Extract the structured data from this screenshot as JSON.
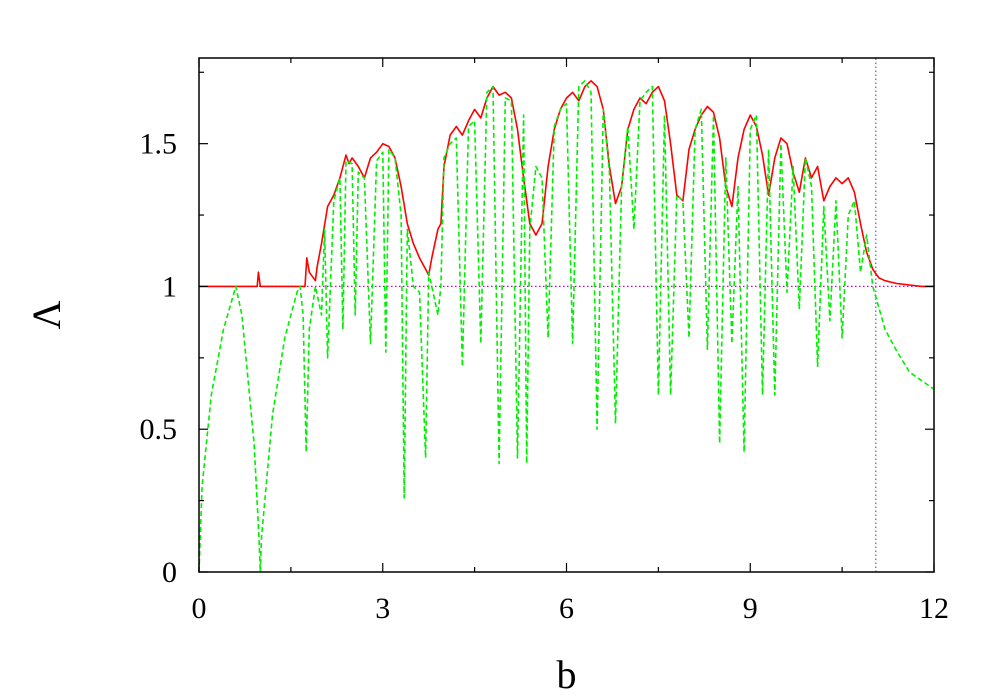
{
  "chart_data": {
    "type": "line",
    "xlabel": "b",
    "ylabel": "Λ",
    "xlim": [
      0,
      12
    ],
    "ylim": [
      0,
      1.8
    ],
    "x_ticks": [
      0,
      3,
      6,
      9,
      12
    ],
    "x_tick_labels": [
      "0",
      "3",
      "6",
      "9",
      "12"
    ],
    "y_ticks": [
      0,
      0.5,
      1,
      1.5
    ],
    "y_tick_labels": [
      "0",
      "0.5",
      "1",
      "1.5"
    ],
    "grid": false,
    "legend": "none",
    "colors": {
      "red": "#ff0000",
      "green": "#00ee00",
      "magenta": "#cc00cc",
      "blue": "#4a66d6"
    },
    "series": [
      {
        "color": "#ff0000",
        "style": "solid",
        "x": [
          0,
          0.95,
          0.97,
          1.0,
          1.05,
          1.7,
          1.73,
          1.76,
          1.8,
          1.9,
          1.93,
          2.0,
          2.1,
          2.2,
          2.3,
          2.4,
          2.45,
          2.5,
          2.6,
          2.7,
          2.8,
          2.9,
          3.0,
          3.1,
          3.2,
          3.3,
          3.4,
          3.5,
          3.6,
          3.7,
          3.75,
          3.8,
          3.9,
          3.95,
          4.0,
          4.1,
          4.2,
          4.3,
          4.4,
          4.5,
          4.6,
          4.7,
          4.8,
          4.9,
          5.0,
          5.1,
          5.2,
          5.3,
          5.4,
          5.5,
          5.6,
          5.7,
          5.8,
          5.9,
          6.0,
          6.1,
          6.2,
          6.3,
          6.4,
          6.5,
          6.6,
          6.7,
          6.8,
          6.9,
          7.0,
          7.1,
          7.2,
          7.3,
          7.4,
          7.5,
          7.6,
          7.7,
          7.8,
          7.9,
          8.0,
          8.1,
          8.2,
          8.3,
          8.4,
          8.5,
          8.6,
          8.7,
          8.8,
          8.9,
          9.0,
          9.1,
          9.2,
          9.3,
          9.4,
          9.5,
          9.6,
          9.7,
          9.8,
          9.9,
          10.0,
          10.1,
          10.2,
          10.3,
          10.4,
          10.5,
          10.6,
          10.7,
          10.8,
          10.9,
          11.0,
          11.1,
          11.2,
          11.4,
          11.6,
          11.8,
          12.0
        ],
        "y": [
          1.0,
          1.0,
          1.05,
          1.0,
          1.0,
          1.0,
          1.0,
          1.1,
          1.05,
          1.02,
          1.07,
          1.15,
          1.28,
          1.32,
          1.38,
          1.46,
          1.43,
          1.45,
          1.42,
          1.38,
          1.45,
          1.47,
          1.5,
          1.49,
          1.45,
          1.35,
          1.22,
          1.15,
          1.1,
          1.06,
          1.04,
          1.1,
          1.2,
          1.22,
          1.42,
          1.53,
          1.56,
          1.53,
          1.58,
          1.62,
          1.59,
          1.66,
          1.7,
          1.67,
          1.68,
          1.66,
          1.55,
          1.38,
          1.22,
          1.18,
          1.22,
          1.42,
          1.55,
          1.62,
          1.66,
          1.68,
          1.65,
          1.7,
          1.72,
          1.7,
          1.62,
          1.42,
          1.29,
          1.35,
          1.55,
          1.62,
          1.66,
          1.64,
          1.68,
          1.7,
          1.65,
          1.5,
          1.32,
          1.3,
          1.48,
          1.55,
          1.6,
          1.63,
          1.61,
          1.52,
          1.35,
          1.28,
          1.45,
          1.55,
          1.6,
          1.56,
          1.46,
          1.32,
          1.45,
          1.52,
          1.5,
          1.4,
          1.33,
          1.45,
          1.38,
          1.42,
          1.3,
          1.35,
          1.38,
          1.36,
          1.38,
          1.33,
          1.22,
          1.12,
          1.06,
          1.03,
          1.02,
          1.01,
          1.005,
          1.0,
          1.0
        ]
      },
      {
        "color": "#00ee00",
        "style": "dashed",
        "x": [
          0,
          0.05,
          0.2,
          0.4,
          0.6,
          0.7,
          0.9,
          0.98,
          1.0,
          1.02,
          1.2,
          1.4,
          1.6,
          1.65,
          1.7,
          1.75,
          1.8,
          1.9,
          2.0,
          2.05,
          2.1,
          2.2,
          2.3,
          2.35,
          2.4,
          2.5,
          2.55,
          2.6,
          2.7,
          2.8,
          2.9,
          3.0,
          3.05,
          3.1,
          3.2,
          3.3,
          3.35,
          3.4,
          3.5,
          3.6,
          3.7,
          3.75,
          3.8,
          3.9,
          3.95,
          4.0,
          4.1,
          4.2,
          4.3,
          4.4,
          4.5,
          4.6,
          4.7,
          4.8,
          4.9,
          5.0,
          5.1,
          5.2,
          5.3,
          5.35,
          5.4,
          5.5,
          5.6,
          5.7,
          5.8,
          5.9,
          6.0,
          6.1,
          6.2,
          6.3,
          6.4,
          6.5,
          6.6,
          6.7,
          6.8,
          6.9,
          7.0,
          7.1,
          7.2,
          7.3,
          7.4,
          7.5,
          7.6,
          7.7,
          7.8,
          7.9,
          8.0,
          8.1,
          8.2,
          8.3,
          8.4,
          8.5,
          8.6,
          8.7,
          8.8,
          8.9,
          9.0,
          9.1,
          9.2,
          9.3,
          9.4,
          9.5,
          9.6,
          9.7,
          9.8,
          9.9,
          10.0,
          10.1,
          10.2,
          10.3,
          10.4,
          10.5,
          10.6,
          10.7,
          10.8,
          10.9,
          11.0,
          11.2,
          11.4,
          11.6,
          11.8,
          12.0
        ],
        "y": [
          0.0,
          0.3,
          0.62,
          0.85,
          1.0,
          0.9,
          0.45,
          0.12,
          0.0,
          0.12,
          0.55,
          0.82,
          0.98,
          1.0,
          0.9,
          0.42,
          0.85,
          1.0,
          0.9,
          1.2,
          0.75,
          1.3,
          1.38,
          0.85,
          1.44,
          1.43,
          0.9,
          1.4,
          1.38,
          0.8,
          1.44,
          1.47,
          0.77,
          1.48,
          1.45,
          1.25,
          0.26,
          1.2,
          1.0,
          0.98,
          0.4,
          1.05,
          1.0,
          0.9,
          1.0,
          1.45,
          1.5,
          1.52,
          0.72,
          1.56,
          1.58,
          0.8,
          1.68,
          1.7,
          0.38,
          1.66,
          1.65,
          0.4,
          1.6,
          0.38,
          1.2,
          1.42,
          1.38,
          0.82,
          1.56,
          1.62,
          1.64,
          0.8,
          1.7,
          1.72,
          1.68,
          0.5,
          1.62,
          1.4,
          0.52,
          1.35,
          1.56,
          1.2,
          1.65,
          1.68,
          1.7,
          0.62,
          1.6,
          0.62,
          1.32,
          1.3,
          0.82,
          1.55,
          1.62,
          0.78,
          1.6,
          0.45,
          1.45,
          0.8,
          1.35,
          0.42,
          1.55,
          1.6,
          0.62,
          1.48,
          0.62,
          1.5,
          0.98,
          1.42,
          0.92,
          1.45,
          1.35,
          0.72,
          1.28,
          0.88,
          1.3,
          0.82,
          1.25,
          1.3,
          1.05,
          1.18,
          1.0,
          0.85,
          0.77,
          0.7,
          0.67,
          0.64
        ]
      },
      {
        "color": "#cc00cc",
        "style": "dotted",
        "x": [
          0,
          12
        ],
        "y": [
          1.0,
          1.0
        ]
      },
      {
        "color": "#4a66d6",
        "style": "dotted",
        "x": [
          11.05,
          11.05
        ],
        "y": [
          0,
          1.8
        ]
      }
    ]
  }
}
